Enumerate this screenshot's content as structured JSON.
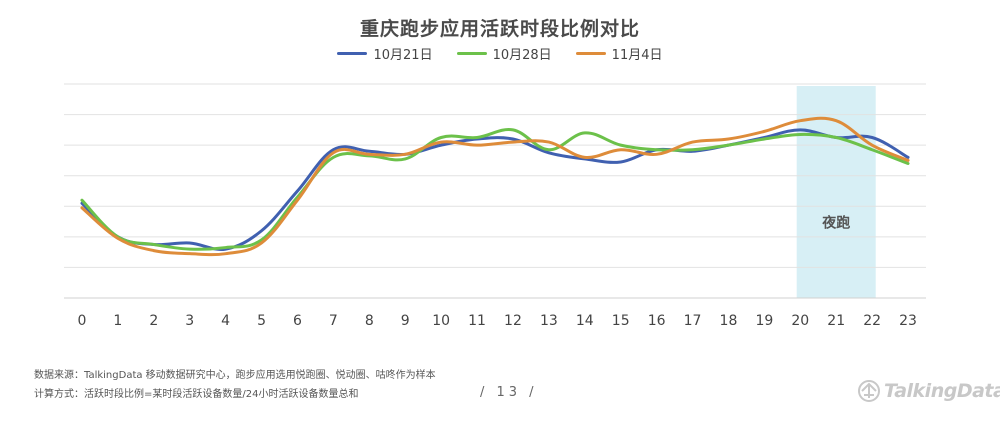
{
  "page": {
    "footnote_source": "数据来源：TalkingData  移动数据研究中心，跑步应用选用悦跑圈、悦动圈、咕咚作为样本",
    "footnote_method": "计算方式：活跃时段比例=某时段活跃设备数量/24小时活跃设备数量总和",
    "page_number": "/ 13 /",
    "logo_text": "TalkingData",
    "logo_icon": "talkingdata-logo-icon"
  },
  "chart_data": {
    "type": "line",
    "title": "重庆跑步应用活跃时段比例对比",
    "xlabel": "",
    "ylabel": "",
    "categories": [
      "0",
      "1",
      "2",
      "3",
      "4",
      "5",
      "6",
      "7",
      "8",
      "9",
      "10",
      "11",
      "12",
      "13",
      "14",
      "15",
      "16",
      "17",
      "18",
      "19",
      "20",
      "21",
      "22",
      "23"
    ],
    "ylim": [
      0,
      7
    ],
    "grid": true,
    "legend_position": "top",
    "series": [
      {
        "name": "10月21日",
        "color": "#4060b0",
        "values": [
          3.1,
          2.0,
          1.75,
          1.8,
          1.6,
          2.2,
          3.5,
          4.85,
          4.8,
          4.7,
          5.0,
          5.2,
          5.2,
          4.75,
          4.55,
          4.45,
          4.85,
          4.8,
          5.0,
          5.25,
          5.5,
          5.25,
          5.25,
          4.6
        ]
      },
      {
        "name": "10月28日",
        "color": "#6cc14a",
        "values": [
          3.2,
          2.0,
          1.75,
          1.6,
          1.65,
          1.9,
          3.3,
          4.6,
          4.65,
          4.55,
          5.25,
          5.25,
          5.5,
          4.85,
          5.4,
          5.0,
          4.85,
          4.85,
          5.0,
          5.2,
          5.35,
          5.25,
          4.85,
          4.4
        ]
      },
      {
        "name": "11月4日",
        "color": "#de8c3a",
        "values": [
          2.95,
          1.95,
          1.55,
          1.45,
          1.45,
          1.8,
          3.2,
          4.75,
          4.7,
          4.7,
          5.1,
          5.0,
          5.1,
          5.1,
          4.6,
          4.85,
          4.7,
          5.1,
          5.2,
          5.45,
          5.8,
          5.8,
          5.0,
          4.5
        ]
      }
    ],
    "highlight": {
      "from": "20",
      "to": "22",
      "label": "夜跑",
      "color": "#d7eff5"
    }
  }
}
